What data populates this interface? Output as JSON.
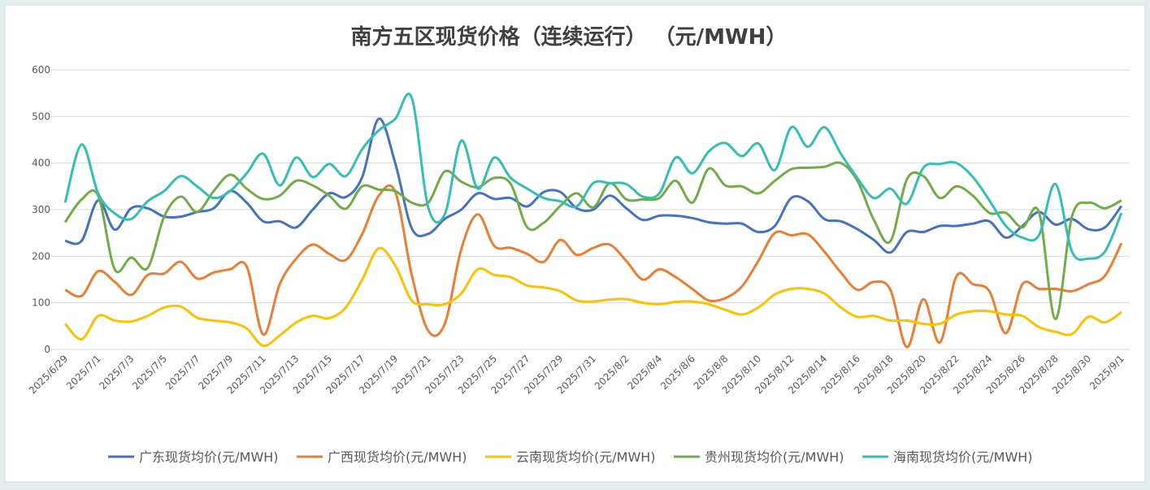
{
  "chart_data": {
    "type": "line",
    "title": "南方五区现货价格（连续运行）    （元/MWH）",
    "categories": [
      "2025/6/29",
      null,
      "2025/7/1",
      null,
      "2025/7/3",
      null,
      "2025/7/5",
      null,
      "2025/7/7",
      null,
      "2025/7/9",
      null,
      "2025/7/11",
      null,
      "2025/7/13",
      null,
      "2025/7/15",
      null,
      "2025/7/17",
      null,
      "2025/7/19",
      null,
      "2025/7/21",
      null,
      "2025/7/23",
      null,
      "2025/7/25",
      null,
      "2025/7/27",
      null,
      "2025/7/29",
      null,
      "2025/7/31",
      null,
      "2025/8/2",
      null,
      "2025/8/4",
      null,
      "2025/8/6",
      null,
      "2025/8/8",
      null,
      "2025/8/10",
      null,
      "2025/8/12",
      null,
      "2025/8/14",
      null,
      "2025/8/16",
      null,
      "2025/8/18",
      null,
      "2025/8/20",
      null,
      "2025/8/22",
      null,
      "2025/8/24",
      null,
      "2025/8/26",
      null,
      "2025/8/28",
      null,
      "2025/8/30",
      null,
      "2025/9/1"
    ],
    "series": [
      {
        "name": "广东现货均价(元/MWH)",
        "color": "#4472c4",
        "values": [
          233,
          233,
          320,
          257,
          303,
          303,
          285,
          285,
          295,
          303,
          340,
          315,
          275,
          275,
          262,
          300,
          335,
          327,
          370,
          495,
          400,
          260,
          248,
          280,
          300,
          335,
          323,
          325,
          307,
          338,
          338,
          303,
          300,
          330,
          303,
          278,
          287,
          287,
          282,
          273,
          270,
          270,
          252,
          265,
          325,
          318,
          280,
          275,
          258,
          235,
          208,
          252,
          252,
          265,
          265,
          270,
          275,
          240,
          265,
          295,
          268,
          280,
          258,
          262,
          308
        ]
      },
      {
        "name": "广西现货均价(元/MWH)",
        "color": "#ed7d31",
        "values": [
          128,
          115,
          168,
          145,
          117,
          160,
          163,
          188,
          152,
          165,
          172,
          178,
          32,
          140,
          195,
          225,
          205,
          192,
          248,
          330,
          338,
          160,
          40,
          55,
          215,
          290,
          222,
          218,
          205,
          188,
          235,
          203,
          218,
          225,
          190,
          150,
          172,
          155,
          130,
          105,
          110,
          135,
          190,
          250,
          245,
          247,
          210,
          165,
          128,
          145,
          128,
          5,
          108,
          15,
          157,
          140,
          125,
          35,
          140,
          130,
          130,
          125,
          140,
          158,
          228
        ]
      },
      {
        "name": "云南现货均价(元/MWH)",
        "color": "#ffc000",
        "values": [
          55,
          22,
          72,
          62,
          60,
          72,
          90,
          92,
          68,
          62,
          58,
          45,
          8,
          30,
          58,
          72,
          67,
          90,
          150,
          217,
          180,
          105,
          97,
          97,
          120,
          172,
          160,
          155,
          137,
          133,
          125,
          105,
          103,
          107,
          108,
          100,
          97,
          102,
          103,
          97,
          85,
          75,
          90,
          118,
          130,
          130,
          120,
          90,
          70,
          72,
          62,
          62,
          55,
          55,
          75,
          82,
          82,
          75,
          72,
          48,
          38,
          33,
          70,
          58,
          80
        ]
      },
      {
        "name": "贵州现货均价(元/MWH)",
        "color": "#70ad47",
        "values": [
          273,
          322,
          330,
          172,
          197,
          175,
          285,
          328,
          295,
          340,
          375,
          345,
          323,
          330,
          362,
          352,
          330,
          302,
          350,
          343,
          340,
          315,
          315,
          382,
          360,
          348,
          368,
          355,
          262,
          272,
          308,
          335,
          305,
          357,
          322,
          322,
          325,
          362,
          315,
          388,
          352,
          350,
          335,
          362,
          387,
          390,
          392,
          400,
          362,
          278,
          232,
          365,
          372,
          325,
          350,
          330,
          293,
          293,
          262,
          295,
          65,
          285,
          315,
          303,
          320
        ]
      },
      {
        "name": "海南现货均价(元/MWH)",
        "color": "#33bfb3",
        "values": [
          315,
          440,
          335,
          292,
          280,
          318,
          340,
          372,
          350,
          325,
          340,
          378,
          420,
          352,
          412,
          370,
          398,
          372,
          430,
          470,
          495,
          540,
          305,
          290,
          448,
          345,
          412,
          368,
          345,
          325,
          318,
          307,
          357,
          357,
          355,
          328,
          335,
          412,
          378,
          425,
          443,
          415,
          442,
          385,
          477,
          435,
          477,
          420,
          368,
          325,
          345,
          313,
          390,
          398,
          400,
          370,
          320,
          265,
          240,
          245,
          355,
          210,
          195,
          210,
          293
        ]
      }
    ],
    "ylim": [
      0,
      600
    ],
    "yticks": [
      0,
      100,
      200,
      300,
      400,
      500,
      600
    ],
    "grid": true
  }
}
